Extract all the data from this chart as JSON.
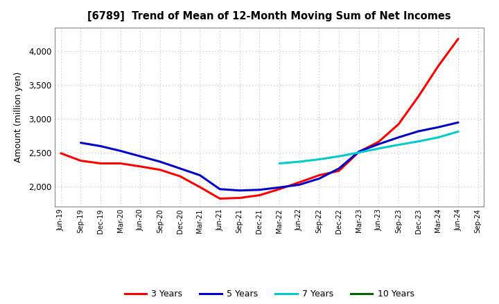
{
  "title": "[6789]  Trend of Mean of 12-Month Moving Sum of Net Incomes",
  "ylabel": "Amount (million yen)",
  "background_color": "#ffffff",
  "grid_color": "#aaaaaa",
  "ylim": [
    1700,
    4350
  ],
  "yticks": [
    2000,
    2500,
    3000,
    3500,
    4000
  ],
  "x_labels": [
    "Jun-19",
    "Sep-19",
    "Dec-19",
    "Mar-20",
    "Jun-20",
    "Sep-20",
    "Dec-20",
    "Mar-21",
    "Jun-21",
    "Sep-21",
    "Dec-21",
    "Mar-22",
    "Jun-22",
    "Sep-22",
    "Dec-22",
    "Mar-23",
    "Jun-23",
    "Sep-23",
    "Dec-23",
    "Mar-24",
    "Jun-24",
    "Sep-24"
  ],
  "series": {
    "3 Years": {
      "color": "#ff0000",
      "indices": [
        0,
        1,
        2,
        3,
        4,
        5,
        6,
        7,
        8,
        9,
        10,
        11,
        12,
        13,
        14,
        15,
        16,
        17,
        18,
        19,
        20
      ],
      "values": [
        2490,
        2380,
        2340,
        2340,
        2295,
        2245,
        2150,
        1990,
        1820,
        1830,
        1870,
        1960,
        2060,
        2165,
        2230,
        2510,
        2660,
        2920,
        3330,
        3780,
        4180
      ]
    },
    "5 Years": {
      "color": "#0000cc",
      "indices": [
        1,
        2,
        3,
        4,
        5,
        6,
        7,
        8,
        9,
        10,
        11,
        12,
        13,
        14,
        15,
        16,
        17,
        18,
        19,
        20
      ],
      "values": [
        2645,
        2595,
        2525,
        2445,
        2365,
        2265,
        2165,
        1960,
        1940,
        1950,
        1985,
        2025,
        2115,
        2265,
        2515,
        2625,
        2725,
        2815,
        2875,
        2945
      ]
    },
    "7 Years": {
      "color": "#00cccc",
      "indices": [
        11,
        12,
        13,
        14,
        15,
        16,
        17,
        18,
        19,
        20
      ],
      "values": [
        2340,
        2365,
        2400,
        2445,
        2500,
        2560,
        2615,
        2665,
        2725,
        2810
      ]
    },
    "10 Years": {
      "color": "#006600",
      "indices": [],
      "values": []
    }
  },
  "legend": {
    "labels": [
      "3 Years",
      "5 Years",
      "7 Years",
      "10 Years"
    ],
    "colors": [
      "#ff0000",
      "#0000cc",
      "#00cccc",
      "#006600"
    ]
  }
}
